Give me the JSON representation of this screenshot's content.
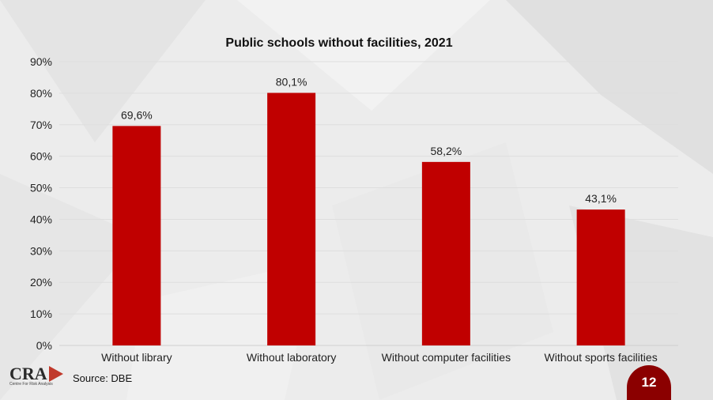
{
  "chart_data": {
    "type": "bar",
    "title": "Public schools without facilities, 2021",
    "categories": [
      "Without library",
      "Without laboratory",
      "Without computer facilities",
      "Without sports facilities"
    ],
    "values": [
      69.6,
      80.1,
      58.2,
      43.1
    ],
    "data_labels": [
      "69,6%",
      "80,1%",
      "58,2%",
      "43,1%"
    ],
    "yticks": [
      "0%",
      "10%",
      "20%",
      "30%",
      "40%",
      "50%",
      "60%",
      "70%",
      "80%",
      "90%"
    ],
    "ylim": [
      0,
      90
    ],
    "grid": true,
    "bar_color": "#c00000"
  },
  "footer": {
    "source": "Source: DBE",
    "page_number": "12",
    "logo_text": "CRA",
    "logo_subtext": "Centre For Risk Analysis"
  }
}
